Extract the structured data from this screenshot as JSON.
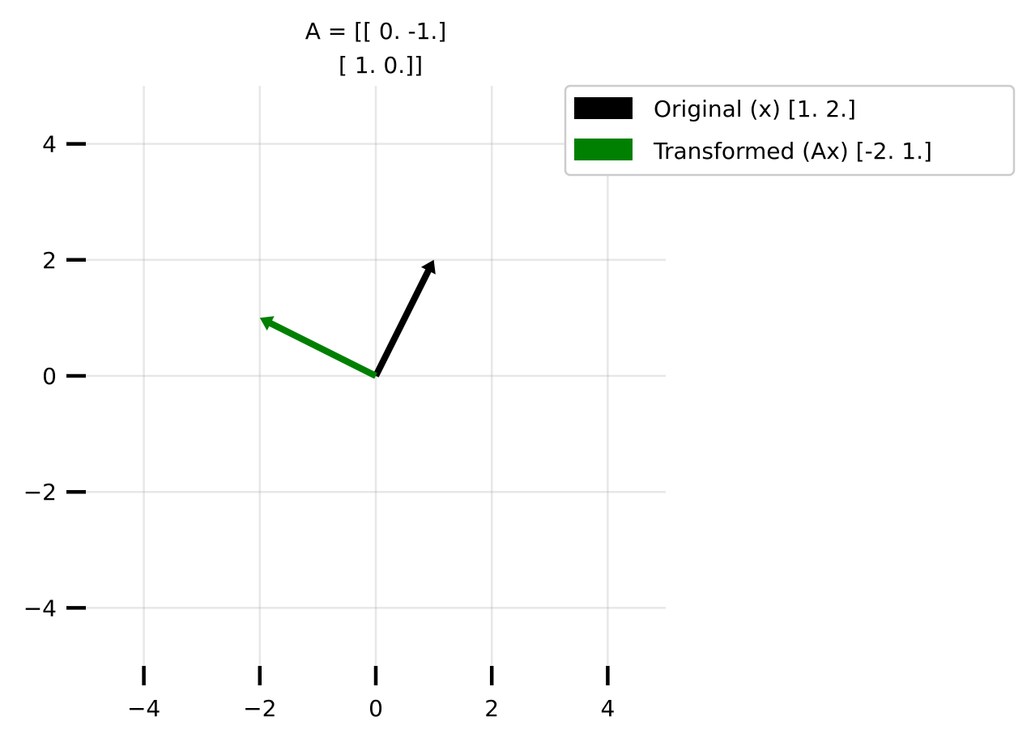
{
  "chart_data": {
    "type": "vector",
    "title_lines": [
      "A = [[ 0. -1.]",
      "[ 1.  0.]]"
    ],
    "xlim": [
      -5,
      5
    ],
    "ylim": [
      -5,
      5
    ],
    "xticks": [
      -4,
      -2,
      0,
      2,
      4
    ],
    "yticks": [
      -4,
      -2,
      0,
      2,
      4
    ],
    "xtick_labels": [
      "−4",
      "−2",
      "0",
      "2",
      "4"
    ],
    "ytick_labels": [
      "−4",
      "−2",
      "0",
      "2",
      "4"
    ],
    "grid": true,
    "legend_position": "upper-right-outside",
    "series": [
      {
        "name": "Original (x) [1. 2.]",
        "color": "#000000",
        "origin": [
          0,
          0
        ],
        "vector": [
          1,
          2
        ]
      },
      {
        "name": "Transformed (Ax) [-2.  1.]",
        "color": "#008000",
        "origin": [
          0,
          0
        ],
        "vector": [
          -2,
          1
        ]
      }
    ]
  }
}
